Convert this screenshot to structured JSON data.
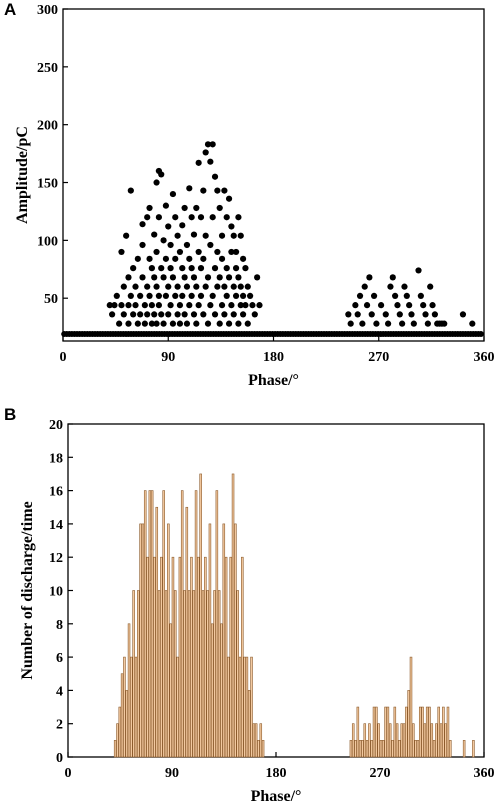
{
  "panels": {
    "a": "A",
    "b": "B"
  },
  "colors": {
    "bar_fill": "#F3C9A0",
    "bar_stroke": "#8B5A2B",
    "dot": "#000000",
    "axis": "#000000"
  },
  "chart_data": [
    {
      "type": "scatter",
      "xlabel": "Phase/°",
      "ylabel": "Amplitude/pC",
      "xlim": [
        0,
        360
      ],
      "ylim": [
        13,
        300
      ],
      "xticks": [
        0,
        90,
        180,
        270,
        360
      ],
      "yticks": [
        50,
        100,
        150,
        200,
        250,
        300
      ],
      "grid": false,
      "baseline_amplitude": 19,
      "points": [
        [
          40,
          44
        ],
        [
          42,
          36
        ],
        [
          44,
          44
        ],
        [
          46,
          52
        ],
        [
          48,
          28
        ],
        [
          50,
          90
        ],
        [
          50,
          44
        ],
        [
          52,
          60
        ],
        [
          52,
          36
        ],
        [
          54,
          104
        ],
        [
          56,
          68
        ],
        [
          56,
          44
        ],
        [
          56,
          28
        ],
        [
          58,
          143
        ],
        [
          58,
          52
        ],
        [
          60,
          36
        ],
        [
          60,
          76
        ],
        [
          62,
          60
        ],
        [
          62,
          44
        ],
        [
          64,
          28
        ],
        [
          64,
          84
        ],
        [
          66,
          52
        ],
        [
          66,
          36
        ],
        [
          68,
          114
        ],
        [
          68,
          96
        ],
        [
          68,
          68
        ],
        [
          70,
          44
        ],
        [
          70,
          28
        ],
        [
          72,
          120
        ],
        [
          72,
          60
        ],
        [
          72,
          36
        ],
        [
          74,
          128
        ],
        [
          74,
          84
        ],
        [
          74,
          52
        ],
        [
          76,
          76
        ],
        [
          76,
          44
        ],
        [
          76,
          28
        ],
        [
          78,
          105
        ],
        [
          78,
          68
        ],
        [
          78,
          36
        ],
        [
          80,
          150
        ],
        [
          80,
          90
        ],
        [
          80,
          60
        ],
        [
          80,
          28
        ],
        [
          82,
          160
        ],
        [
          82,
          120
        ],
        [
          82,
          52
        ],
        [
          82,
          44
        ],
        [
          84,
          157
        ],
        [
          84,
          76
        ],
        [
          84,
          36
        ],
        [
          86,
          100
        ],
        [
          86,
          68
        ],
        [
          86,
          28
        ],
        [
          88,
          130
        ],
        [
          88,
          84
        ],
        [
          88,
          52
        ],
        [
          90,
          112
        ],
        [
          90,
          60
        ],
        [
          90,
          36
        ],
        [
          92,
          96
        ],
        [
          92,
          76
        ],
        [
          92,
          44
        ],
        [
          94,
          140
        ],
        [
          94,
          68
        ],
        [
          94,
          28
        ],
        [
          96,
          120
        ],
        [
          96,
          84
        ],
        [
          96,
          52
        ],
        [
          98,
          104
        ],
        [
          98,
          60
        ],
        [
          98,
          36
        ],
        [
          100,
          90
        ],
        [
          100,
          44
        ],
        [
          100,
          28
        ],
        [
          102,
          113
        ],
        [
          102,
          76
        ],
        [
          102,
          52
        ],
        [
          104,
          128
        ],
        [
          104,
          68
        ],
        [
          104,
          36
        ],
        [
          106,
          96
        ],
        [
          106,
          60
        ],
        [
          106,
          28
        ],
        [
          108,
          145
        ],
        [
          108,
          84
        ],
        [
          108,
          44
        ],
        [
          110,
          120
        ],
        [
          110,
          76
        ],
        [
          110,
          52
        ],
        [
          112,
          105
        ],
        [
          112,
          68
        ],
        [
          112,
          36
        ],
        [
          114,
          128
        ],
        [
          114,
          60
        ],
        [
          114,
          28
        ],
        [
          116,
          167
        ],
        [
          116,
          90
        ],
        [
          116,
          44
        ],
        [
          118,
          120
        ],
        [
          118,
          76
        ],
        [
          118,
          52
        ],
        [
          120,
          143
        ],
        [
          120,
          84
        ],
        [
          120,
          36
        ],
        [
          122,
          176
        ],
        [
          122,
          104
        ],
        [
          122,
          60
        ],
        [
          124,
          183
        ],
        [
          124,
          68
        ],
        [
          124,
          28
        ],
        [
          126,
          168
        ],
        [
          126,
          96
        ],
        [
          126,
          44
        ],
        [
          128,
          183
        ],
        [
          128,
          120
        ],
        [
          128,
          52
        ],
        [
          130,
          155
        ],
        [
          130,
          76
        ],
        [
          130,
          36
        ],
        [
          132,
          143
        ],
        [
          132,
          90
        ],
        [
          132,
          60
        ],
        [
          134,
          128
        ],
        [
          134,
          68
        ],
        [
          134,
          28
        ],
        [
          136,
          104
        ],
        [
          136,
          84
        ],
        [
          136,
          44
        ],
        [
          138,
          143
        ],
        [
          138,
          60
        ],
        [
          138,
          36
        ],
        [
          140,
          120
        ],
        [
          140,
          76
        ],
        [
          140,
          52
        ],
        [
          142,
          136
        ],
        [
          142,
          68
        ],
        [
          142,
          28
        ],
        [
          144,
          112
        ],
        [
          144,
          90
        ],
        [
          144,
          44
        ],
        [
          146,
          104
        ],
        [
          146,
          60
        ],
        [
          146,
          36
        ],
        [
          148,
          90
        ],
        [
          148,
          76
        ],
        [
          148,
          52
        ],
        [
          150,
          120
        ],
        [
          150,
          68
        ],
        [
          150,
          28
        ],
        [
          152,
          104
        ],
        [
          152,
          60
        ],
        [
          152,
          44
        ],
        [
          154,
          84
        ],
        [
          154,
          52
        ],
        [
          154,
          36
        ],
        [
          156,
          76
        ],
        [
          156,
          44
        ],
        [
          158,
          60
        ],
        [
          158,
          28
        ],
        [
          160,
          52
        ],
        [
          162,
          44
        ],
        [
          164,
          36
        ],
        [
          166,
          68
        ],
        [
          168,
          44
        ],
        [
          244,
          36
        ],
        [
          246,
          28
        ],
        [
          250,
          44
        ],
        [
          252,
          36
        ],
        [
          254,
          52
        ],
        [
          256,
          28
        ],
        [
          258,
          60
        ],
        [
          260,
          44
        ],
        [
          262,
          68
        ],
        [
          264,
          36
        ],
        [
          266,
          52
        ],
        [
          268,
          28
        ],
        [
          272,
          44
        ],
        [
          276,
          36
        ],
        [
          278,
          28
        ],
        [
          280,
          60
        ],
        [
          282,
          68
        ],
        [
          284,
          52
        ],
        [
          286,
          44
        ],
        [
          288,
          36
        ],
        [
          290,
          28
        ],
        [
          292,
          60
        ],
        [
          294,
          52
        ],
        [
          296,
          44
        ],
        [
          298,
          36
        ],
        [
          300,
          28
        ],
        [
          304,
          74
        ],
        [
          306,
          52
        ],
        [
          308,
          44
        ],
        [
          310,
          36
        ],
        [
          312,
          28
        ],
        [
          314,
          60
        ],
        [
          316,
          44
        ],
        [
          318,
          36
        ],
        [
          320,
          28
        ],
        [
          322,
          28
        ],
        [
          324,
          28
        ],
        [
          326,
          28
        ],
        [
          342,
          36
        ],
        [
          350,
          28
        ]
      ]
    },
    {
      "type": "bar",
      "xlabel": "Phase/°",
      "ylabel": "Number of discharge/time",
      "xlim": [
        0,
        360
      ],
      "ylim": [
        0,
        20
      ],
      "xticks": [
        0,
        90,
        180,
        270,
        360
      ],
      "yticks": [
        0,
        2,
        4,
        6,
        8,
        10,
        12,
        14,
        16,
        18,
        20
      ],
      "grid": false,
      "bin_width": 2,
      "bins": [
        [
          40,
          1
        ],
        [
          42,
          2
        ],
        [
          44,
          3
        ],
        [
          46,
          5
        ],
        [
          48,
          6
        ],
        [
          50,
          4
        ],
        [
          52,
          8
        ],
        [
          54,
          6
        ],
        [
          56,
          10
        ],
        [
          58,
          6
        ],
        [
          60,
          10
        ],
        [
          62,
          14
        ],
        [
          64,
          14
        ],
        [
          66,
          16
        ],
        [
          68,
          12
        ],
        [
          70,
          16
        ],
        [
          72,
          16
        ],
        [
          74,
          12
        ],
        [
          76,
          15
        ],
        [
          78,
          10
        ],
        [
          80,
          12
        ],
        [
          82,
          16
        ],
        [
          84,
          10
        ],
        [
          86,
          14
        ],
        [
          88,
          8
        ],
        [
          90,
          12
        ],
        [
          92,
          10
        ],
        [
          94,
          6
        ],
        [
          96,
          12
        ],
        [
          98,
          16
        ],
        [
          100,
          10
        ],
        [
          102,
          15
        ],
        [
          104,
          10
        ],
        [
          106,
          12
        ],
        [
          108,
          10
        ],
        [
          110,
          16
        ],
        [
          112,
          12
        ],
        [
          114,
          17
        ],
        [
          116,
          10
        ],
        [
          118,
          12
        ],
        [
          120,
          10
        ],
        [
          122,
          14
        ],
        [
          124,
          8
        ],
        [
          126,
          10
        ],
        [
          128,
          16
        ],
        [
          130,
          10
        ],
        [
          132,
          8
        ],
        [
          134,
          14
        ],
        [
          136,
          12
        ],
        [
          138,
          6
        ],
        [
          140,
          12
        ],
        [
          142,
          17
        ],
        [
          144,
          14
        ],
        [
          146,
          10
        ],
        [
          148,
          6
        ],
        [
          150,
          12
        ],
        [
          152,
          6
        ],
        [
          154,
          6
        ],
        [
          156,
          4
        ],
        [
          158,
          6
        ],
        [
          160,
          2
        ],
        [
          162,
          2
        ],
        [
          164,
          1
        ],
        [
          166,
          2
        ],
        [
          168,
          1
        ],
        [
          244,
          1
        ],
        [
          246,
          2
        ],
        [
          248,
          1
        ],
        [
          250,
          3
        ],
        [
          252,
          1
        ],
        [
          254,
          1
        ],
        [
          256,
          2
        ],
        [
          258,
          1
        ],
        [
          260,
          2
        ],
        [
          262,
          1
        ],
        [
          264,
          3
        ],
        [
          266,
          3
        ],
        [
          268,
          2
        ],
        [
          270,
          1
        ],
        [
          272,
          1
        ],
        [
          274,
          3
        ],
        [
          276,
          3
        ],
        [
          278,
          2
        ],
        [
          280,
          1
        ],
        [
          282,
          3
        ],
        [
          284,
          2
        ],
        [
          286,
          1
        ],
        [
          288,
          2
        ],
        [
          290,
          2
        ],
        [
          292,
          3
        ],
        [
          294,
          4
        ],
        [
          296,
          6
        ],
        [
          298,
          2
        ],
        [
          300,
          1
        ],
        [
          302,
          1
        ],
        [
          304,
          3
        ],
        [
          306,
          3
        ],
        [
          308,
          2
        ],
        [
          310,
          3
        ],
        [
          312,
          3
        ],
        [
          314,
          2
        ],
        [
          316,
          1
        ],
        [
          318,
          2
        ],
        [
          320,
          3
        ],
        [
          322,
          2
        ],
        [
          324,
          3
        ],
        [
          326,
          2
        ],
        [
          328,
          3
        ],
        [
          330,
          1
        ],
        [
          342,
          1
        ],
        [
          350,
          1
        ]
      ]
    }
  ]
}
